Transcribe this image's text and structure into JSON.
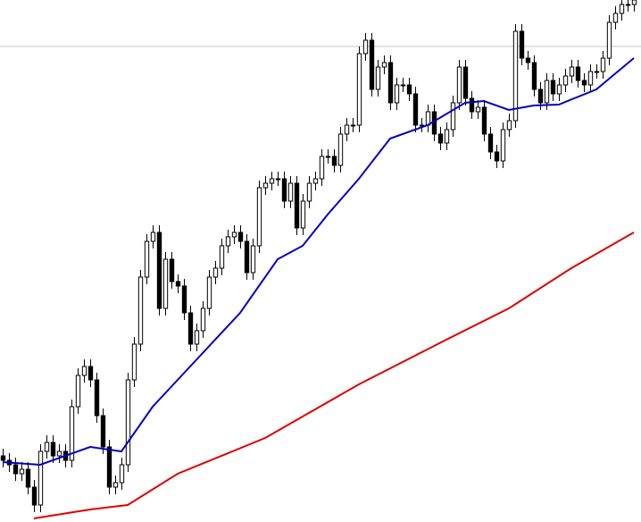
{
  "chart_data": {
    "type": "candlestick",
    "xlim": [
      -0.43,
      102.14
    ],
    "ylim": [
      0,
      584
    ],
    "hline": 532,
    "hline_color": "#c8c8c8",
    "up_color": "#ffffff",
    "down_color": "#000000",
    "open": [
      74,
      69,
      64,
      54,
      59,
      39,
      19,
      79,
      89,
      74,
      79,
      69,
      129,
      164,
      174,
      159,
      119,
      84,
      39,
      44,
      64,
      159,
      199,
      274,
      314,
      324,
      239,
      294,
      269,
      264,
      234,
      199,
      214,
      239,
      274,
      284,
      309,
      319,
      324,
      314,
      279,
      309,
      374,
      379,
      384,
      384,
      359,
      379,
      329,
      359,
      379,
      384,
      409,
      409,
      399,
      434,
      444,
      444,
      524,
      539,
      484,
      509,
      514,
      469,
      489,
      489,
      479,
      444,
      444,
      459,
      434,
      424,
      439,
      469,
      509,
      474,
      459,
      464,
      434,
      414,
      404,
      439,
      449,
      549,
      519,
      514,
      484,
      469,
      494,
      479,
      489,
      499,
      509,
      494,
      489,
      504,
      504,
      519,
      559,
      569,
      579,
      579
    ],
    "high": [
      82,
      77,
      72,
      67,
      67,
      47,
      87,
      97,
      97,
      87,
      87,
      137,
      172,
      182,
      182,
      167,
      127,
      92,
      52,
      72,
      167,
      207,
      282,
      322,
      332,
      332,
      302,
      302,
      277,
      272,
      242,
      222,
      247,
      282,
      292,
      317,
      327,
      332,
      332,
      322,
      317,
      382,
      387,
      392,
      392,
      392,
      387,
      387,
      367,
      387,
      392,
      417,
      417,
      417,
      442,
      452,
      452,
      532,
      547,
      547,
      517,
      522,
      522,
      497,
      497,
      497,
      487,
      452,
      467,
      467,
      442,
      447,
      477,
      517,
      517,
      482,
      472,
      472,
      442,
      422,
      447,
      457,
      557,
      557,
      527,
      522,
      492,
      502,
      502,
      497,
      507,
      517,
      517,
      502,
      512,
      512,
      527,
      567,
      577,
      587,
      587,
      592
    ],
    "low": [
      61,
      56,
      46,
      46,
      31,
      11,
      11,
      71,
      66,
      66,
      61,
      61,
      121,
      156,
      151,
      111,
      76,
      31,
      31,
      36,
      56,
      151,
      191,
      266,
      306,
      231,
      231,
      261,
      256,
      226,
      191,
      191,
      206,
      231,
      266,
      276,
      301,
      311,
      306,
      271,
      271,
      301,
      366,
      371,
      376,
      351,
      351,
      321,
      321,
      351,
      371,
      376,
      401,
      391,
      391,
      426,
      436,
      436,
      516,
      476,
      476,
      501,
      461,
      461,
      481,
      471,
      436,
      436,
      436,
      426,
      416,
      416,
      431,
      461,
      466,
      451,
      451,
      426,
      406,
      396,
      396,
      431,
      441,
      511,
      506,
      476,
      461,
      461,
      471,
      471,
      481,
      491,
      486,
      481,
      481,
      496,
      496,
      511,
      551,
      561,
      571,
      571
    ],
    "close": [
      69,
      64,
      54,
      59,
      39,
      19,
      79,
      89,
      74,
      79,
      69,
      129,
      164,
      174,
      159,
      119,
      84,
      39,
      44,
      64,
      159,
      199,
      274,
      314,
      324,
      239,
      294,
      269,
      264,
      234,
      199,
      214,
      239,
      274,
      284,
      309,
      319,
      324,
      314,
      279,
      309,
      374,
      379,
      384,
      384,
      359,
      379,
      329,
      359,
      379,
      384,
      409,
      409,
      399,
      434,
      444,
      444,
      524,
      539,
      484,
      509,
      514,
      469,
      489,
      489,
      479,
      444,
      444,
      459,
      434,
      424,
      439,
      469,
      509,
      474,
      459,
      464,
      434,
      414,
      404,
      439,
      449,
      549,
      519,
      514,
      484,
      469,
      494,
      479,
      489,
      499,
      509,
      494,
      489,
      504,
      504,
      519,
      559,
      569,
      579,
      579,
      584
    ],
    "series": [
      {
        "color": "#0000c8",
        "x": [
          0,
          6,
          14,
          19,
          24,
          30,
          38,
          44,
          48,
          52,
          57,
          62,
          68,
          74,
          77,
          81,
          85,
          89,
          95,
          101
        ],
        "values": [
          67,
          64,
          84,
          79,
          129,
          174,
          234,
          294,
          309,
          344,
          384,
          429,
          444,
          469,
          471,
          461,
          466,
          467,
          484,
          519
        ]
      },
      {
        "color": "#e00000",
        "x": [
          5,
          14,
          20,
          28,
          42,
          57,
          71,
          81,
          91,
          101
        ],
        "values": [
          4,
          14,
          19,
          54,
          94,
          154,
          204,
          239,
          284,
          324
        ]
      }
    ]
  }
}
